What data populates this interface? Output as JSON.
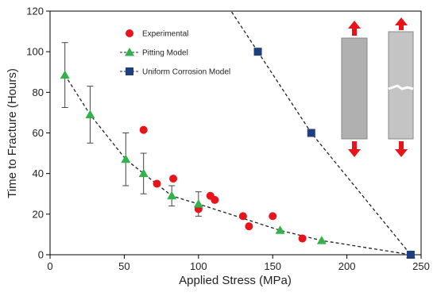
{
  "chart_data": {
    "type": "scatter",
    "x_label": "Applied Stress (MPa)",
    "y_label": "Time to Fracture (Hours)",
    "xlim": [
      0,
      250
    ],
    "ylim": [
      0,
      120
    ],
    "xticks": [
      0,
      50,
      100,
      150,
      200,
      250
    ],
    "yticks": [
      0,
      20,
      40,
      60,
      80,
      100,
      120
    ],
    "grid": false,
    "legend": "upper left",
    "series": [
      {
        "name": "Experimental",
        "color": "#e8141b",
        "marker": "circle",
        "line": false,
        "x": [
          63,
          72,
          83,
          100,
          108,
          111,
          130,
          134,
          150,
          170
        ],
        "values": [
          61.5,
          35,
          37.5,
          22.5,
          29,
          27,
          19,
          14,
          19,
          8
        ]
      },
      {
        "name": "Pitting Model",
        "color": "#33b14a",
        "marker": "triangle",
        "line": true,
        "x": [
          10,
          27,
          51,
          63,
          82,
          100,
          155,
          183,
          243
        ],
        "values": [
          88.5,
          69,
          47,
          40,
          29,
          25,
          12,
          7,
          0
        ],
        "errors": [
          16,
          14,
          13,
          10,
          5,
          6,
          null,
          null,
          null
        ]
      },
      {
        "name": "Uniform Corrosion Model",
        "color": "#1f3f7f",
        "marker": "square",
        "line": true,
        "x": [
          140,
          176,
          243
        ],
        "values": [
          100,
          60,
          0
        ]
      }
    ]
  }
}
